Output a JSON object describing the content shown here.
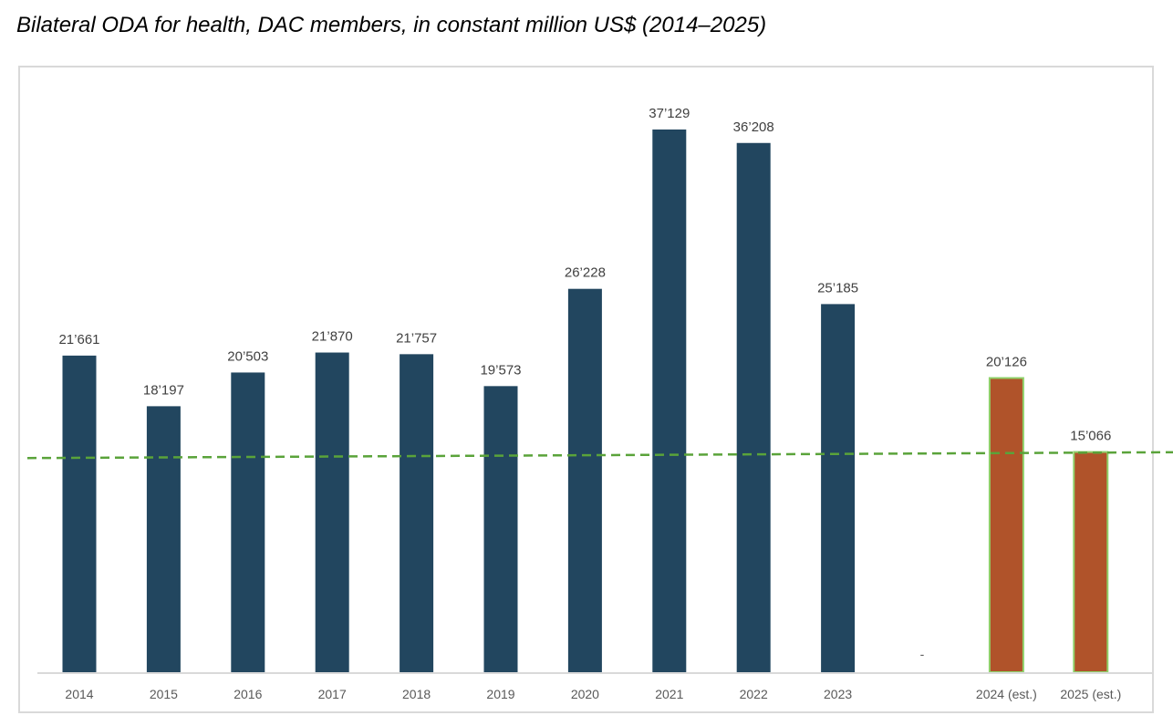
{
  "chart_data": {
    "type": "bar",
    "title": "Bilateral ODA for health, DAC members, in constant million US$ (2014–2025)",
    "categories": [
      "2014",
      "2015",
      "2016",
      "2017",
      "2018",
      "2019",
      "2020",
      "2021",
      "2022",
      "2023",
      "-",
      "2024 (est.)",
      "2025 (est.)"
    ],
    "values": [
      21661,
      18197,
      20503,
      21870,
      21757,
      19573,
      26228,
      37129,
      36208,
      25185,
      null,
      20126,
      15066
    ],
    "data_labels": [
      "21’661",
      "18’197",
      "20’503",
      "21’870",
      "21’757",
      "19’573",
      "26’228",
      "37’129",
      "36’208",
      "25’185",
      "",
      "20’126",
      "15’066"
    ],
    "estimated": [
      false,
      false,
      false,
      false,
      false,
      false,
      false,
      false,
      false,
      false,
      false,
      true,
      true
    ],
    "colors": {
      "actual": "#22465f",
      "estimate": "#b0532a",
      "estimate_border": "#8fd16a",
      "reference_line": "#5aa33a",
      "axis": "#d9d9d9"
    },
    "reference_line": {
      "style": "dashed",
      "start_value": 14650,
      "end_value": 15050
    },
    "ylim": [
      0,
      39000
    ],
    "grid": false,
    "xlabel": "",
    "ylabel": ""
  }
}
